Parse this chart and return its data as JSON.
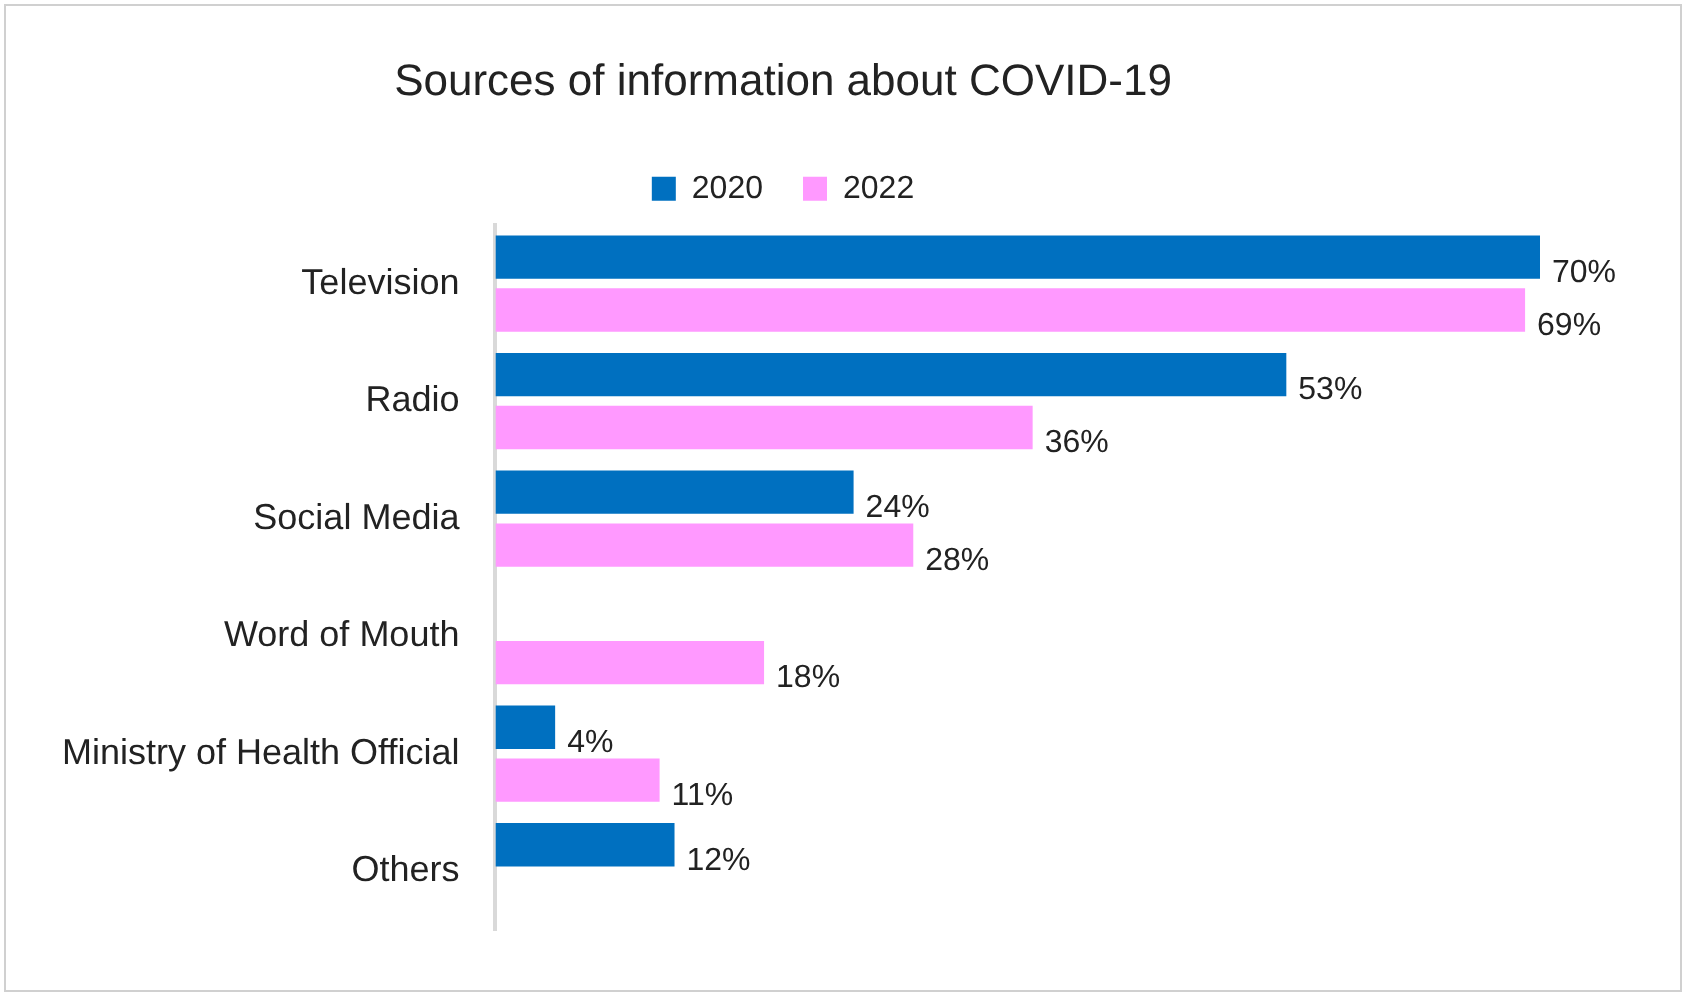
{
  "chart_data": {
    "type": "bar",
    "orientation": "horizontal",
    "title": "Sources of information about COVID-19",
    "categories": [
      "Television",
      "Radio",
      "Social Media",
      "Word of Mouth",
      "Ministry of Health Official",
      "Others"
    ],
    "series": [
      {
        "name": "2020",
        "color": "#0070c0",
        "values": [
          70,
          53,
          24,
          null,
          4,
          12
        ],
        "value_labels": [
          "70%",
          "53%",
          "24%",
          null,
          "4%",
          "12%"
        ]
      },
      {
        "name": "2022",
        "color": "#ff99ff",
        "values": [
          69,
          36,
          28,
          18,
          11,
          null
        ],
        "value_labels": [
          "69%",
          "36%",
          "28%",
          "18%",
          "11%",
          null
        ]
      }
    ],
    "legend": "top",
    "grid": false,
    "tick_labels": "y"
  }
}
